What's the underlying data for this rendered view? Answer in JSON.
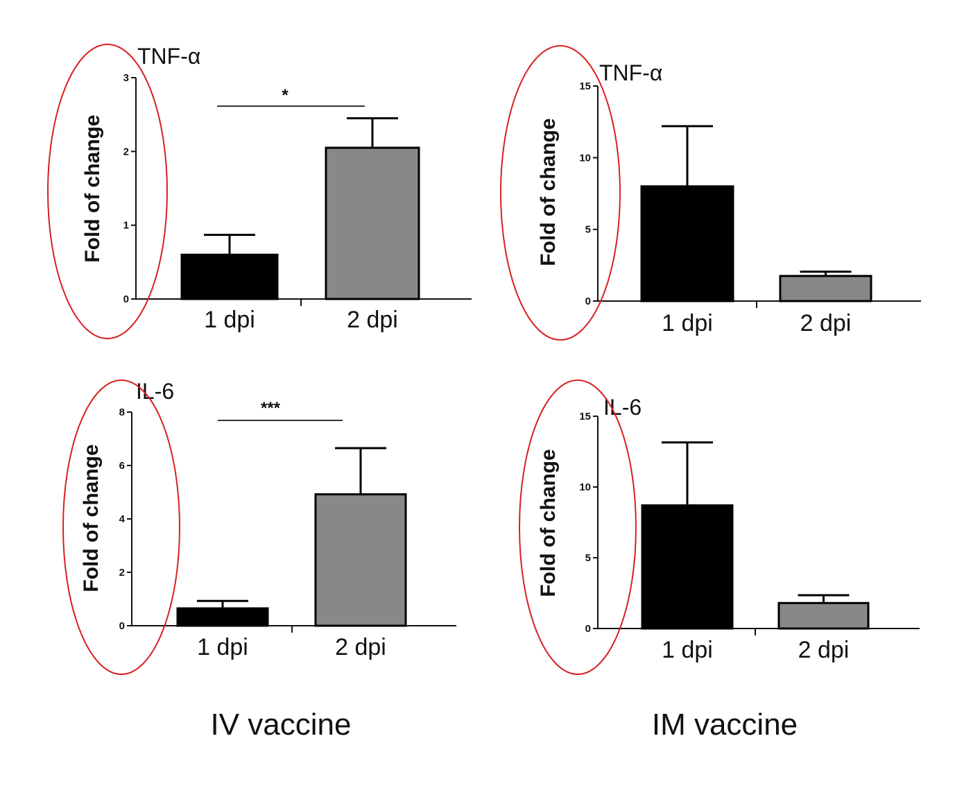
{
  "colors": {
    "series_1dpi": "#000000",
    "series_2dpi": "#888888",
    "annotation_ellipse": "#d81f1f",
    "axis": "#111111"
  },
  "captions": {
    "left": "IV vaccine",
    "right": "IM vaccine"
  },
  "chart_data": [
    {
      "type": "bar",
      "title": "TNF-α",
      "ylabel": "Fold of change",
      "xlabel": "",
      "categories": [
        "1 dpi",
        "2 dpi"
      ],
      "values": [
        0.6,
        2.05
      ],
      "errors": [
        0.27,
        0.4
      ],
      "ylim": [
        0,
        3
      ],
      "yticks": [
        0,
        1,
        2,
        3
      ],
      "significance": "*",
      "group": "IV vaccine"
    },
    {
      "type": "bar",
      "title": "TNF-α",
      "ylabel": "Fold of change",
      "xlabel": "",
      "categories": [
        "1 dpi",
        "2 dpi"
      ],
      "values": [
        8.0,
        1.75
      ],
      "errors": [
        4.2,
        0.3
      ],
      "ylim": [
        0,
        15
      ],
      "yticks": [
        0,
        5,
        10,
        15
      ],
      "significance": "",
      "group": "IM vaccine"
    },
    {
      "type": "bar",
      "title": "IL-6",
      "ylabel": "Fold of change",
      "xlabel": "",
      "categories": [
        "1 dpi",
        "2 dpi"
      ],
      "values": [
        0.65,
        4.92
      ],
      "errors": [
        0.28,
        1.73
      ],
      "ylim": [
        0,
        8
      ],
      "yticks": [
        0,
        2,
        4,
        6,
        8
      ],
      "significance": "***",
      "group": "IV vaccine"
    },
    {
      "type": "bar",
      "title": "IL-6",
      "ylabel": "Fold of change",
      "xlabel": "",
      "categories": [
        "1 dpi",
        "2 dpi"
      ],
      "values": [
        8.7,
        1.8
      ],
      "errors": [
        4.45,
        0.55
      ],
      "ylim": [
        0,
        15
      ],
      "yticks": [
        0,
        5,
        10,
        15
      ],
      "significance": "",
      "group": "IM vaccine"
    }
  ]
}
